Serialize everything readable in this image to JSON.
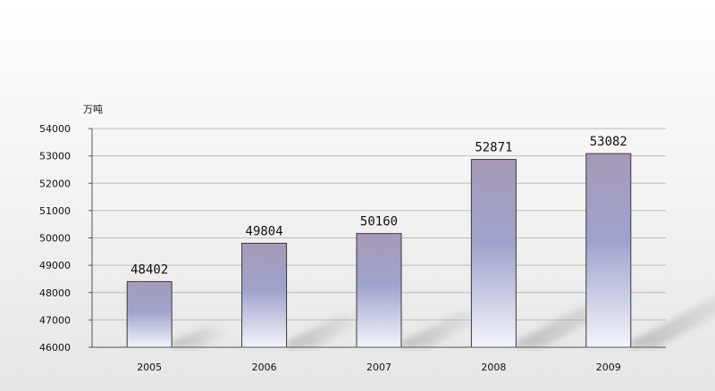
{
  "chart_data": {
    "type": "bar",
    "unit_label": "万吨",
    "categories": [
      "2005",
      "2006",
      "2007",
      "2008",
      "2009"
    ],
    "values": [
      48402,
      49804,
      50160,
      52871,
      53082
    ],
    "ylim": [
      46000,
      54000
    ],
    "yticks": [
      "46000",
      "47000",
      "48000",
      "49000",
      "50000",
      "51000",
      "52000",
      "53000",
      "54000"
    ],
    "grid": true,
    "colors": {
      "bar_top": "#a79ab8",
      "bar_mid": "#9fa3cc",
      "bar_bottom": "#f4f4fb",
      "grid": "#bdbdbd",
      "axis": "#555555"
    }
  }
}
